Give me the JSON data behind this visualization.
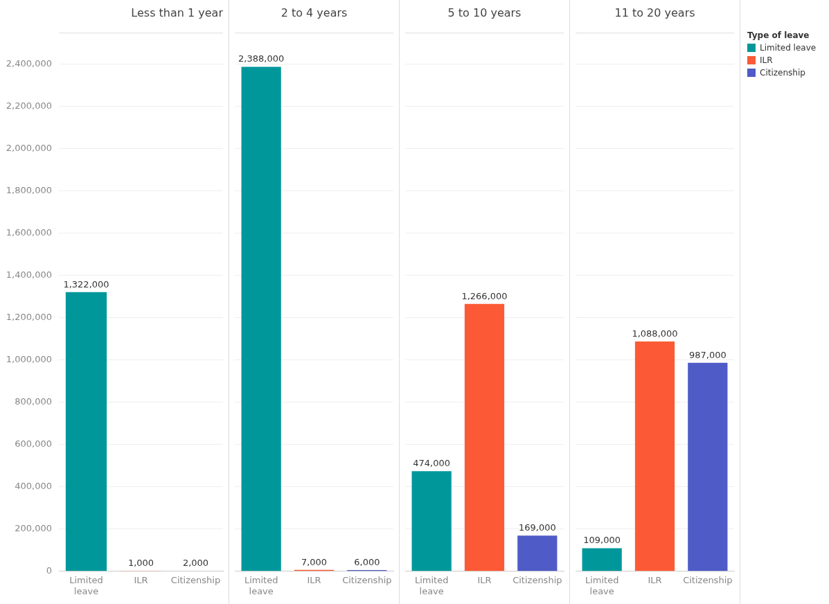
{
  "chart_data": [
    {
      "type": "bar",
      "title": "Less than 1 year",
      "categories": [
        "Limited leave",
        "ILR",
        "Citizenship"
      ],
      "series": [
        {
          "name": "Limited leave",
          "color": "#00979b",
          "values": [
            1322000,
            null,
            null
          ],
          "value_labels": [
            "1,322,000",
            null,
            null
          ]
        },
        {
          "name": "ILR",
          "color": "#fc5a36",
          "values": [
            null,
            1000,
            null
          ],
          "value_labels": [
            null,
            "1,000",
            null
          ]
        },
        {
          "name": "Citizenship",
          "color": "#4f5bc6",
          "values": [
            null,
            null,
            2000
          ],
          "value_labels": [
            null,
            null,
            "2,000"
          ]
        }
      ],
      "legend": "right",
      "legend_title": "Type of leave",
      "ylim": [
        0,
        2550000
      ],
      "yticks": [
        {
          "value": 0,
          "label": "0"
        },
        {
          "value": 200000,
          "label": "200,000"
        },
        {
          "value": 400000,
          "label": "400,000"
        },
        {
          "value": 600000,
          "label": "600,000"
        },
        {
          "value": 800000,
          "label": "800,000"
        },
        {
          "value": 1000000,
          "label": "1,000,000"
        },
        {
          "value": 1200000,
          "label": "1,200,000"
        },
        {
          "value": 1400000,
          "label": "1,400,000"
        },
        {
          "value": 1600000,
          "label": "1,600,000"
        },
        {
          "value": 1800000,
          "label": "1,800,000"
        },
        {
          "value": 2000000,
          "label": "2,000,000"
        },
        {
          "value": 2200000,
          "label": "2,200,000"
        },
        {
          "value": 2400000,
          "label": "2,400,000"
        }
      ],
      "grid": "y"
    },
    {
      "type": "bar",
      "title": "2 to 4 years",
      "categories": [
        "Limited leave",
        "ILR",
        "Citizenship"
      ],
      "series": [
        {
          "color": "#00979b",
          "values": [
            2388000,
            null,
            null
          ],
          "value_labels": [
            "2,388,000",
            null,
            null
          ]
        },
        {
          "color": "#fc5a36",
          "values": [
            null,
            7000,
            null
          ],
          "value_labels": [
            null,
            "7,000",
            null
          ]
        },
        {
          "color": "#4f5bc6",
          "values": [
            null,
            null,
            6000
          ],
          "value_labels": [
            null,
            null,
            "6,000"
          ]
        }
      ],
      "ylim": [
        0,
        2550000
      ],
      "yticks": [
        0,
        200000,
        400000,
        600000,
        800000,
        1000000,
        1200000,
        1400000,
        1600000,
        1800000,
        2000000,
        2200000,
        2400000
      ],
      "grid": "y",
      "tick_labels": "x"
    },
    {
      "type": "bar",
      "title": "5 to 10 years",
      "categories": [
        "Limited leave",
        "ILR",
        "Citizenship"
      ],
      "series": [
        {
          "color": "#00979b",
          "values": [
            474000,
            null,
            null
          ],
          "value_labels": [
            "474,000",
            null,
            null
          ]
        },
        {
          "color": "#fc5a36",
          "values": [
            null,
            1266000,
            null
          ],
          "value_labels": [
            null,
            "1,266,000",
            null
          ]
        },
        {
          "color": "#4f5bc6",
          "values": [
            null,
            null,
            169000
          ],
          "value_labels": [
            null,
            null,
            "169,000"
          ]
        }
      ],
      "ylim": [
        0,
        2550000
      ],
      "yticks": [
        0,
        200000,
        400000,
        600000,
        800000,
        1000000,
        1200000,
        1400000,
        1600000,
        1800000,
        2000000,
        2200000,
        2400000
      ],
      "grid": "y",
      "tick_labels": "x"
    },
    {
      "type": "bar",
      "title": "11 to 20 years",
      "categories": [
        "Limited leave",
        "ILR",
        "Citizenship"
      ],
      "series": [
        {
          "color": "#00979b",
          "values": [
            109000,
            null,
            null
          ],
          "value_labels": [
            "109,000",
            null,
            null
          ]
        },
        {
          "color": "#fc5a36",
          "values": [
            null,
            1088000,
            null
          ],
          "value_labels": [
            null,
            "1,088,000",
            null
          ]
        },
        {
          "color": "#4f5bc6",
          "values": [
            null,
            null,
            987000
          ],
          "value_labels": [
            null,
            null,
            "987,000"
          ]
        }
      ],
      "ylim": [
        0,
        2550000
      ],
      "yticks": [
        0,
        200000,
        400000,
        600000,
        800000,
        1000000,
        1200000,
        1400000,
        1600000,
        1800000,
        2000000,
        2200000,
        2400000
      ],
      "grid": "y",
      "tick_labels": "x"
    }
  ]
}
